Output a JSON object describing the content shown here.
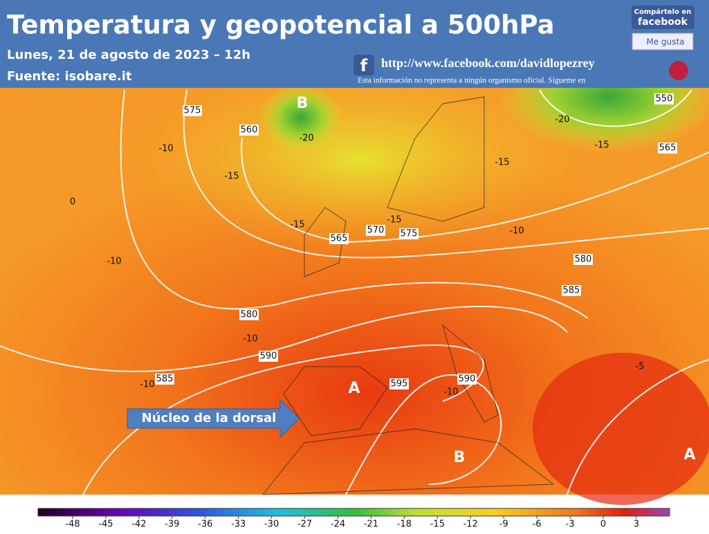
{
  "header": {
    "title": "Temperatura y geopotencial a 500hPa",
    "date": "Lunes, 21 de agosto de 2023 – 12h",
    "source": "Fuente:  isobare.it",
    "url": "http://www.facebook.com/davidlopezrey",
    "disclaimer": "Esta información no representa a ningún organismo oficial. Sígueme en",
    "share": "Compártelo en",
    "brand": "facebook",
    "like": "Me gusta"
  },
  "map": {
    "annotation": "Núcleo de la dorsal",
    "centers": [
      "B",
      "A",
      "B",
      "A"
    ],
    "contour_labels": [
      575,
      560,
      -20,
      -10,
      -15,
      0,
      -10,
      -15,
      565,
      570,
      575,
      -15,
      580,
      -10,
      590,
      585,
      -10,
      595,
      590,
      -10,
      580,
      585,
      -10,
      -15,
      550,
      -20,
      -15,
      565,
      -5
    ]
  },
  "colorbar": {
    "ticks": [
      -48,
      -45,
      -42,
      -39,
      -36,
      -33,
      -30,
      -27,
      -24,
      -21,
      -18,
      -15,
      -12,
      -9,
      -6,
      -3,
      0,
      3
    ]
  }
}
